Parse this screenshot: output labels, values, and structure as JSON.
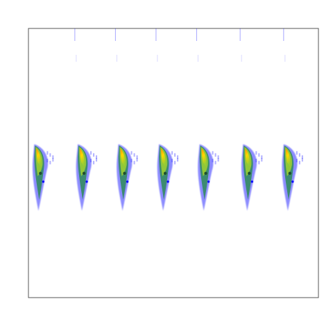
{
  "chart_data": {
    "type": "heatmap",
    "title": "",
    "xlabel": "",
    "ylabel": "",
    "grid": false,
    "legend": "none",
    "colormap": [
      "#0000ff",
      "#2e8b57",
      "#9acd32",
      "#ffd700",
      "#ff8c00",
      "#ff4500"
    ],
    "bursts": [
      {
        "id": 1,
        "x": 0.02,
        "y": 0.43
      },
      {
        "id": 2,
        "x": 0.17,
        "y": 0.43
      },
      {
        "id": 3,
        "x": 0.31,
        "y": 0.43
      },
      {
        "id": 4,
        "x": 0.45,
        "y": 0.43
      },
      {
        "id": 5,
        "x": 0.59,
        "y": 0.43
      },
      {
        "id": 6,
        "x": 0.74,
        "y": 0.43
      },
      {
        "id": 7,
        "x": 0.88,
        "y": 0.43
      }
    ],
    "top_ticks": [
      0.16,
      0.3,
      0.44,
      0.58,
      0.73,
      0.88
    ]
  }
}
